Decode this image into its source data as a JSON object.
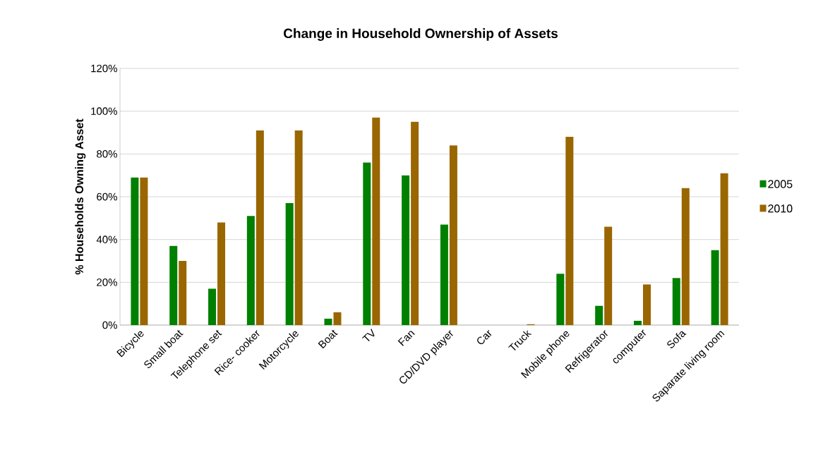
{
  "chart_data": {
    "type": "bar",
    "title": "Change in Household Ownership of Assets",
    "ylabel": "% Households Owning Asset",
    "categories": [
      "Bicycle",
      "Small boat",
      "Telephone set",
      "Rice- cooker",
      "Motorcycle",
      "Boat",
      "TV",
      "Fan",
      "CD/DVD player",
      "Car",
      "Truck",
      "Mobile phone",
      "Refrigerator",
      "computer",
      "Sofa",
      "Saparate living room"
    ],
    "series": [
      {
        "name": "2005",
        "color": "#008000",
        "values": [
          69,
          37,
          17,
          51,
          57,
          3,
          76,
          70,
          47,
          0,
          0,
          24,
          9,
          2,
          22,
          35
        ]
      },
      {
        "name": "2010",
        "color": "#996600",
        "values": [
          69,
          30,
          48,
          91,
          91,
          6,
          97,
          95,
          84,
          0,
          0.4,
          88,
          46,
          19,
          64,
          71
        ]
      }
    ],
    "ylim": [
      0,
      120
    ],
    "yticks": [
      {
        "value": 0,
        "label": "0%"
      },
      {
        "value": 20,
        "label": "20%"
      },
      {
        "value": 40,
        "label": "40%"
      },
      {
        "value": 60,
        "label": "60%"
      },
      {
        "value": 80,
        "label": "80%"
      },
      {
        "value": 100,
        "label": "100%"
      },
      {
        "value": 120,
        "label": "120%"
      }
    ],
    "grid": "y",
    "legend": "right"
  }
}
